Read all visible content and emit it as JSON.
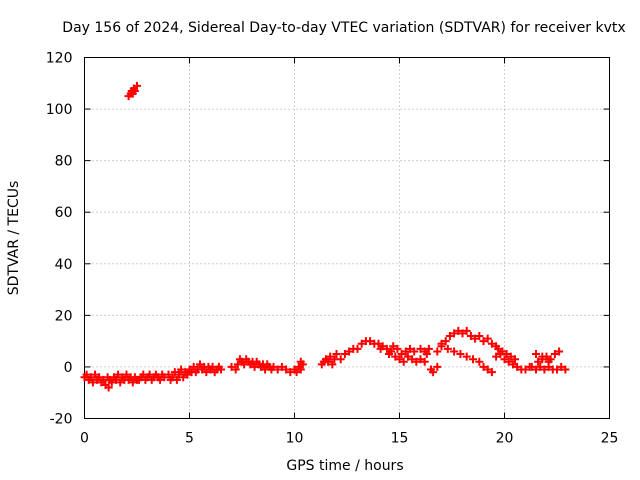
{
  "chart_data": {
    "type": "scatter",
    "title": "Day 156 of 2024, Sidereal Day-to-day VTEC variation (SDTVAR) for receiver kvtx",
    "xlabel": "GPS time / hours",
    "ylabel": "SDTVAR / TECUs",
    "xlim": [
      0,
      25
    ],
    "ylim": [
      -20,
      120
    ],
    "xticks": [
      "0",
      "5",
      "10",
      "15",
      "20",
      "25"
    ],
    "yticks": [
      "-20",
      "0",
      "20",
      "40",
      "60",
      "80",
      "100",
      "120"
    ],
    "grid": true,
    "marker": "+",
    "color": "#ff0000",
    "series": [
      {
        "name": "SDTVAR",
        "points": [
          [
            0.0,
            -4
          ],
          [
            0.1,
            -3
          ],
          [
            0.2,
            -5
          ],
          [
            0.3,
            -4
          ],
          [
            0.4,
            -6
          ],
          [
            0.5,
            -3
          ],
          [
            0.6,
            -5
          ],
          [
            0.7,
            -4
          ],
          [
            0.8,
            -6
          ],
          [
            0.9,
            -5
          ],
          [
            1.0,
            -7
          ],
          [
            1.1,
            -4
          ],
          [
            1.15,
            -8
          ],
          [
            1.2,
            -5
          ],
          [
            1.3,
            -6
          ],
          [
            1.4,
            -4
          ],
          [
            1.5,
            -5
          ],
          [
            1.6,
            -3
          ],
          [
            1.7,
            -6
          ],
          [
            1.8,
            -4
          ],
          [
            1.9,
            -5
          ],
          [
            2.0,
            -3
          ],
          [
            2.1,
            -5
          ],
          [
            2.2,
            -4
          ],
          [
            2.3,
            -6
          ],
          [
            2.4,
            -4
          ],
          [
            2.5,
            -5
          ],
          [
            2.1,
            105
          ],
          [
            2.2,
            106
          ],
          [
            2.25,
            107
          ],
          [
            2.3,
            106
          ],
          [
            2.35,
            108
          ],
          [
            2.4,
            107
          ],
          [
            2.5,
            109
          ],
          [
            2.6,
            -5
          ],
          [
            2.7,
            -4
          ],
          [
            2.8,
            -3
          ],
          [
            2.9,
            -5
          ],
          [
            3.0,
            -4
          ],
          [
            3.1,
            -3
          ],
          [
            3.2,
            -5
          ],
          [
            3.3,
            -4
          ],
          [
            3.4,
            -3
          ],
          [
            3.5,
            -4
          ],
          [
            3.6,
            -5
          ],
          [
            3.7,
            -3
          ],
          [
            3.8,
            -4
          ],
          [
            4.0,
            -3
          ],
          [
            4.1,
            -5
          ],
          [
            4.2,
            -4
          ],
          [
            4.3,
            -2
          ],
          [
            4.4,
            -5
          ],
          [
            4.5,
            -3
          ],
          [
            4.6,
            -1
          ],
          [
            4.7,
            -4
          ],
          [
            4.8,
            -2
          ],
          [
            4.9,
            -3
          ],
          [
            5.0,
            -1
          ],
          [
            5.1,
            -2
          ],
          [
            5.2,
            0
          ],
          [
            5.3,
            -2
          ],
          [
            5.4,
            -1
          ],
          [
            5.5,
            1
          ],
          [
            5.6,
            -1
          ],
          [
            5.7,
            0
          ],
          [
            5.8,
            -2
          ],
          [
            5.9,
            0
          ],
          [
            6.0,
            -1
          ],
          [
            6.1,
            0
          ],
          [
            6.2,
            -2
          ],
          [
            6.3,
            -1
          ],
          [
            6.4,
            0
          ],
          [
            6.5,
            -1
          ],
          [
            7.0,
            0
          ],
          [
            7.2,
            -1
          ],
          [
            7.3,
            1
          ],
          [
            7.4,
            3
          ],
          [
            7.5,
            2
          ],
          [
            7.6,
            1
          ],
          [
            7.7,
            3
          ],
          [
            7.8,
            2
          ],
          [
            7.9,
            1
          ],
          [
            8.0,
            2
          ],
          [
            8.1,
            0
          ],
          [
            8.2,
            2
          ],
          [
            8.3,
            1
          ],
          [
            8.4,
            0
          ],
          [
            8.5,
            1
          ],
          [
            8.6,
            -1
          ],
          [
            8.7,
            1
          ],
          [
            8.8,
            0
          ],
          [
            8.9,
            -1
          ],
          [
            9.0,
            0
          ],
          [
            9.2,
            -1
          ],
          [
            9.4,
            0
          ],
          [
            9.6,
            -1
          ],
          [
            9.8,
            -2
          ],
          [
            10.0,
            -1
          ],
          [
            10.1,
            -2
          ],
          [
            10.2,
            0
          ],
          [
            10.3,
            -1
          ],
          [
            10.4,
            1
          ],
          [
            10.3,
            2
          ],
          [
            11.3,
            1
          ],
          [
            11.4,
            2
          ],
          [
            11.5,
            3
          ],
          [
            11.6,
            2
          ],
          [
            11.7,
            4
          ],
          [
            11.8,
            1
          ],
          [
            11.9,
            3
          ],
          [
            12.0,
            5
          ],
          [
            12.2,
            3
          ],
          [
            12.4,
            5
          ],
          [
            12.6,
            6
          ],
          [
            12.8,
            7
          ],
          [
            13.0,
            7
          ],
          [
            13.2,
            9
          ],
          [
            13.4,
            10
          ],
          [
            13.6,
            10
          ],
          [
            13.8,
            9
          ],
          [
            14.0,
            9
          ],
          [
            14.1,
            7
          ],
          [
            14.2,
            8
          ],
          [
            14.4,
            7
          ],
          [
            14.5,
            5
          ],
          [
            14.6,
            6
          ],
          [
            14.8,
            4
          ],
          [
            15.0,
            3
          ],
          [
            15.1,
            5
          ],
          [
            15.2,
            2
          ],
          [
            15.4,
            4
          ],
          [
            15.6,
            3
          ],
          [
            15.8,
            2
          ],
          [
            16.0,
            3
          ],
          [
            16.2,
            2
          ],
          [
            16.3,
            5
          ],
          [
            16.5,
            -1
          ],
          [
            16.6,
            -2
          ],
          [
            16.8,
            0
          ],
          [
            14.7,
            8
          ],
          [
            14.9,
            7
          ],
          [
            15.3,
            6
          ],
          [
            15.5,
            7
          ],
          [
            15.7,
            6
          ],
          [
            16.0,
            7
          ],
          [
            16.2,
            6
          ],
          [
            16.4,
            7
          ],
          [
            16.8,
            6
          ],
          [
            17.0,
            8
          ],
          [
            17.2,
            10
          ],
          [
            17.4,
            12
          ],
          [
            17.6,
            13
          ],
          [
            17.8,
            14
          ],
          [
            18.0,
            13
          ],
          [
            18.2,
            14
          ],
          [
            18.4,
            12
          ],
          [
            18.6,
            11
          ],
          [
            18.8,
            12
          ],
          [
            19.0,
            10
          ],
          [
            19.2,
            11
          ],
          [
            19.4,
            9
          ],
          [
            19.6,
            8
          ],
          [
            17.0,
            9
          ],
          [
            17.3,
            7
          ],
          [
            17.6,
            6
          ],
          [
            17.9,
            5
          ],
          [
            18.2,
            4
          ],
          [
            18.5,
            3
          ],
          [
            18.8,
            2
          ],
          [
            19.0,
            0
          ],
          [
            19.2,
            -1
          ],
          [
            19.4,
            -2
          ],
          [
            19.6,
            4
          ],
          [
            19.8,
            5
          ],
          [
            20.0,
            3
          ],
          [
            20.2,
            2
          ],
          [
            20.4,
            1
          ],
          [
            20.6,
            0
          ],
          [
            20.8,
            -1
          ],
          [
            21.0,
            -1
          ],
          [
            21.2,
            0
          ],
          [
            19.7,
            7
          ],
          [
            19.9,
            6
          ],
          [
            20.1,
            5
          ],
          [
            20.3,
            4
          ],
          [
            20.5,
            3
          ],
          [
            21.3,
            0
          ],
          [
            21.5,
            -1
          ],
          [
            21.7,
            0
          ],
          [
            21.9,
            -1
          ],
          [
            22.1,
            0
          ],
          [
            22.3,
            -1
          ],
          [
            22.5,
            -1
          ],
          [
            22.7,
            0
          ],
          [
            22.9,
            -1
          ],
          [
            21.6,
            2
          ],
          [
            21.8,
            3
          ],
          [
            22.0,
            4
          ],
          [
            22.2,
            3
          ],
          [
            22.4,
            5
          ],
          [
            22.6,
            6
          ],
          [
            21.5,
            5
          ],
          [
            21.8,
            4
          ],
          [
            22.1,
            2
          ]
        ]
      }
    ]
  }
}
